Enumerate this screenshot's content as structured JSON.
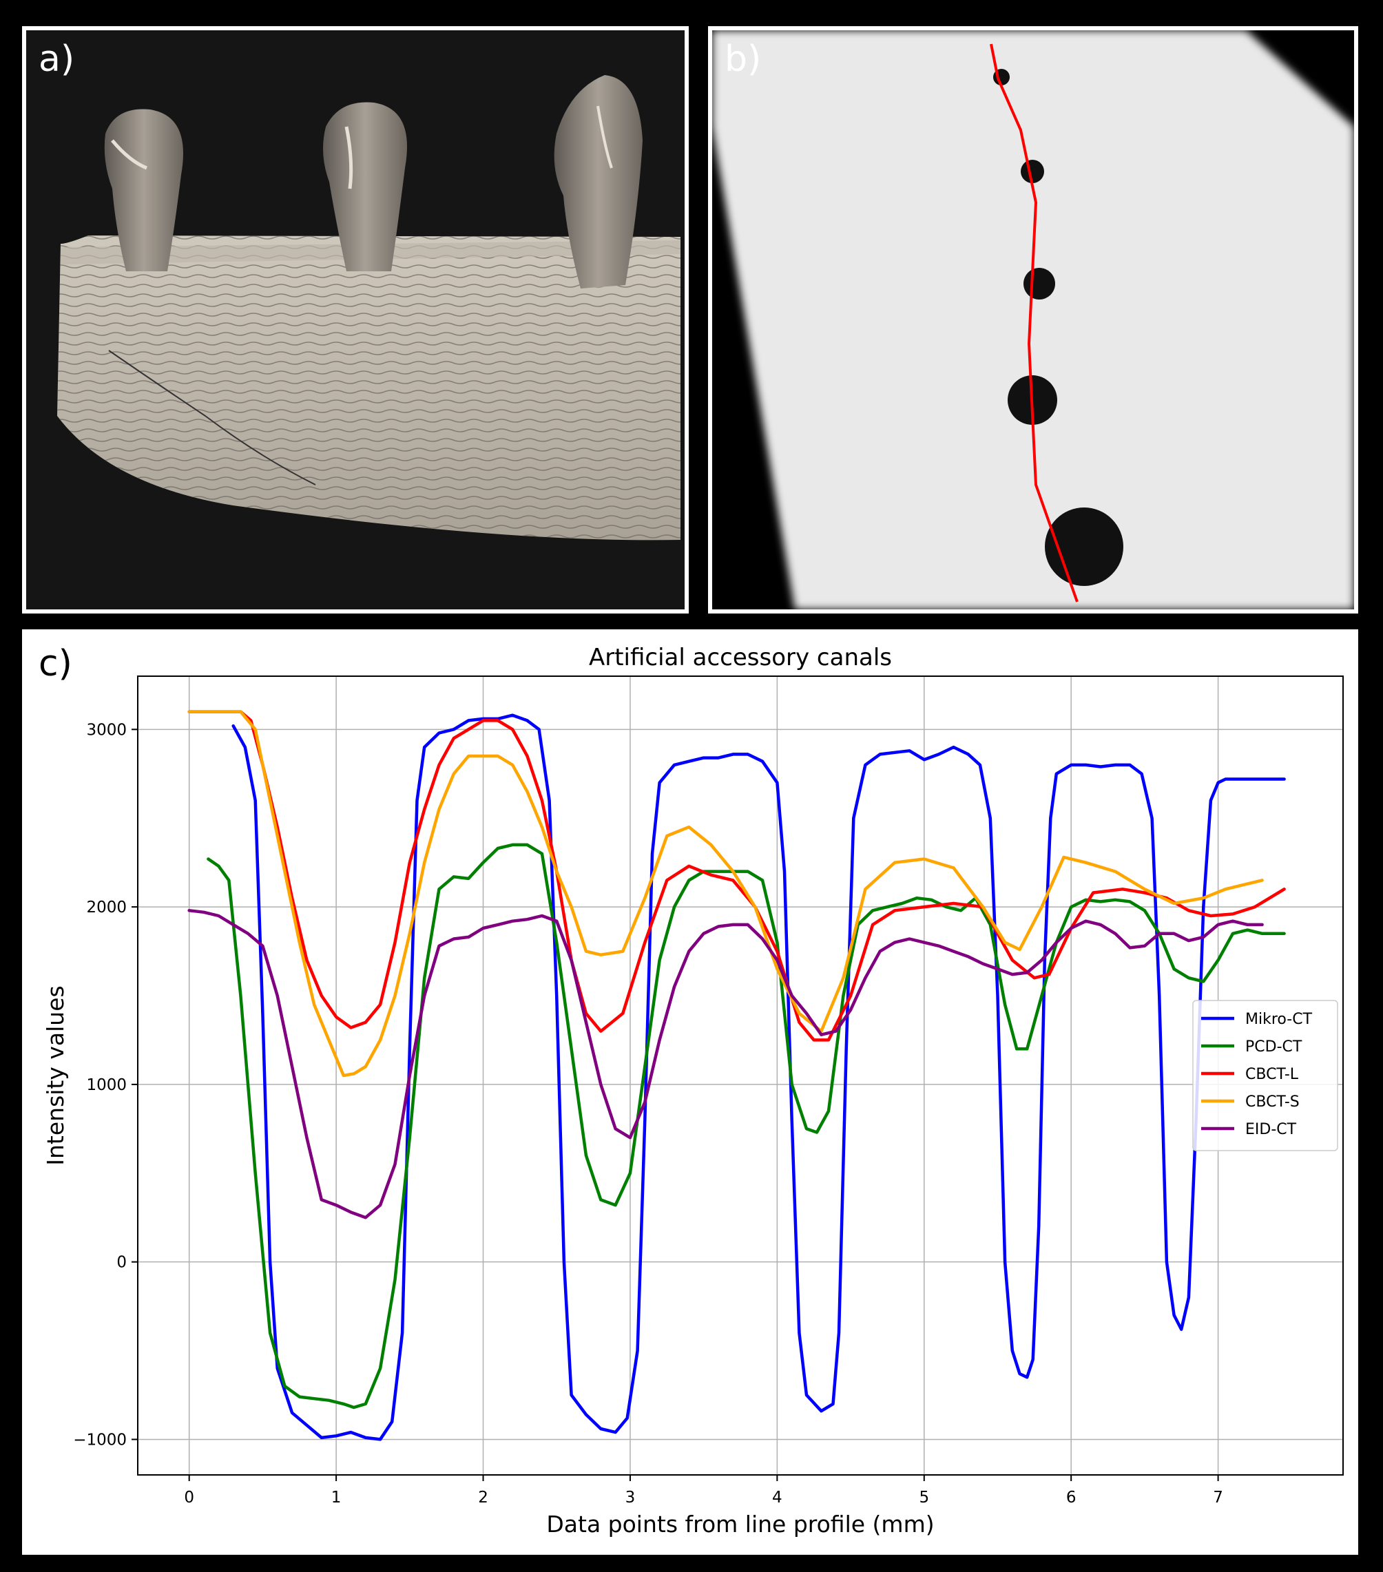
{
  "panels": {
    "a": {
      "label": "a)"
    },
    "b": {
      "label": "b)"
    },
    "c": {
      "label": "c)"
    }
  },
  "colors": {
    "Mikro-CT": "#0000ff",
    "PCD-CT": "#008000",
    "CBCT-L": "#ff0000",
    "CBCT-S": "#ffa500",
    "EID-CT": "#800080",
    "profile_line": "#ff0000"
  },
  "chart_data": {
    "type": "line",
    "title": "Artificial accessory canals",
    "xlabel": "Data points from line profile (mm)",
    "ylabel": "Intensity values",
    "xlim": [
      -0.35,
      7.85
    ],
    "ylim": [
      -1200,
      3300
    ],
    "xticks": [
      0,
      1,
      2,
      3,
      4,
      5,
      6,
      7
    ],
    "yticks": [
      -1000,
      0,
      1000,
      2000,
      3000
    ],
    "grid": true,
    "legend_position": "center-right",
    "series": [
      {
        "name": "Mikro-CT",
        "x": [
          0.3,
          0.38,
          0.45,
          0.5,
          0.55,
          0.6,
          0.7,
          0.8,
          0.9,
          1.0,
          1.1,
          1.2,
          1.3,
          1.38,
          1.45,
          1.5,
          1.55,
          1.6,
          1.7,
          1.8,
          1.9,
          2.0,
          2.1,
          2.2,
          2.3,
          2.38,
          2.45,
          2.5,
          2.55,
          2.6,
          2.7,
          2.8,
          2.9,
          2.98,
          3.05,
          3.1,
          3.15,
          3.2,
          3.3,
          3.4,
          3.5,
          3.6,
          3.7,
          3.8,
          3.9,
          4.0,
          4.05,
          4.1,
          4.15,
          4.2,
          4.3,
          4.38,
          4.42,
          4.47,
          4.52,
          4.6,
          4.7,
          4.8,
          4.9,
          5.0,
          5.1,
          5.2,
          5.3,
          5.38,
          5.45,
          5.5,
          5.55,
          5.6,
          5.65,
          5.7,
          5.74,
          5.78,
          5.82,
          5.86,
          5.9,
          6.0,
          6.1,
          6.2,
          6.3,
          6.4,
          6.48,
          6.55,
          6.6,
          6.65,
          6.7,
          6.75,
          6.8,
          6.85,
          6.9,
          6.95,
          7.0,
          7.05,
          7.1,
          7.2,
          7.3,
          7.45
        ],
        "y": [
          3020,
          2900,
          2600,
          1400,
          0,
          -600,
          -850,
          -920,
          -990,
          -980,
          -960,
          -990,
          -1000,
          -900,
          -400,
          1200,
          2600,
          2900,
          2980,
          3000,
          3050,
          3060,
          3060,
          3080,
          3050,
          3000,
          2600,
          1500,
          0,
          -750,
          -860,
          -940,
          -960,
          -880,
          -500,
          800,
          2300,
          2700,
          2800,
          2820,
          2840,
          2840,
          2860,
          2860,
          2820,
          2700,
          2200,
          800,
          -400,
          -750,
          -840,
          -800,
          -400,
          1200,
          2500,
          2800,
          2860,
          2870,
          2880,
          2830,
          2860,
          2900,
          2860,
          2800,
          2500,
          1500,
          0,
          -500,
          -630,
          -650,
          -550,
          200,
          1700,
          2500,
          2750,
          2800,
          2800,
          2790,
          2800,
          2800,
          2750,
          2500,
          1500,
          0,
          -300,
          -380,
          -200,
          800,
          2000,
          2600,
          2700,
          2720,
          2720,
          2720,
          2720,
          2720
        ]
      },
      {
        "name": "PCD-CT",
        "x": [
          0.13,
          0.2,
          0.27,
          0.35,
          0.45,
          0.55,
          0.65,
          0.75,
          0.85,
          0.95,
          1.05,
          1.12,
          1.2,
          1.3,
          1.4,
          1.5,
          1.6,
          1.7,
          1.8,
          1.9,
          2.0,
          2.1,
          2.2,
          2.3,
          2.4,
          2.5,
          2.6,
          2.7,
          2.8,
          2.9,
          3.0,
          3.1,
          3.2,
          3.3,
          3.4,
          3.5,
          3.6,
          3.7,
          3.8,
          3.9,
          4.0,
          4.1,
          4.2,
          4.27,
          4.35,
          4.45,
          4.55,
          4.65,
          4.75,
          4.85,
          4.95,
          5.05,
          5.15,
          5.25,
          5.35,
          5.45,
          5.55,
          5.63,
          5.7,
          5.8,
          5.9,
          6.0,
          6.1,
          6.2,
          6.3,
          6.4,
          6.5,
          6.6,
          6.7,
          6.8,
          6.9,
          7.0,
          7.1,
          7.2,
          7.3,
          7.45
        ],
        "y": [
          2270,
          2230,
          2150,
          1500,
          500,
          -400,
          -700,
          -760,
          -770,
          -780,
          -800,
          -820,
          -800,
          -600,
          -100,
          700,
          1600,
          2100,
          2170,
          2160,
          2250,
          2330,
          2350,
          2350,
          2300,
          1800,
          1200,
          600,
          350,
          320,
          500,
          1100,
          1700,
          2000,
          2150,
          2200,
          2200,
          2200,
          2200,
          2150,
          1800,
          1000,
          750,
          730,
          850,
          1500,
          1900,
          1980,
          2000,
          2020,
          2050,
          2040,
          2000,
          1980,
          2050,
          1900,
          1450,
          1200,
          1200,
          1500,
          1800,
          2000,
          2040,
          2030,
          2040,
          2030,
          1980,
          1850,
          1650,
          1600,
          1580,
          1700,
          1850,
          1870,
          1850,
          1850
        ]
      },
      {
        "name": "CBCT-L",
        "x": [
          0.0,
          0.1,
          0.2,
          0.35,
          0.42,
          0.5,
          0.6,
          0.7,
          0.8,
          0.9,
          1.0,
          1.1,
          1.2,
          1.3,
          1.4,
          1.5,
          1.6,
          1.7,
          1.8,
          1.9,
          2.0,
          2.1,
          2.2,
          2.3,
          2.4,
          2.5,
          2.6,
          2.7,
          2.8,
          2.95,
          3.1,
          3.25,
          3.4,
          3.55,
          3.7,
          3.85,
          4.0,
          4.15,
          4.25,
          4.35,
          4.5,
          4.65,
          4.8,
          5.0,
          5.2,
          5.4,
          5.6,
          5.75,
          5.85,
          6.0,
          6.15,
          6.35,
          6.5,
          6.65,
          6.8,
          6.95,
          7.1,
          7.25,
          7.45
        ],
        "y": [
          3100,
          3100,
          3100,
          3100,
          3050,
          2800,
          2450,
          2050,
          1700,
          1500,
          1380,
          1320,
          1350,
          1450,
          1800,
          2250,
          2550,
          2800,
          2950,
          3000,
          3050,
          3050,
          3000,
          2850,
          2600,
          2200,
          1700,
          1400,
          1300,
          1400,
          1800,
          2150,
          2230,
          2180,
          2150,
          2000,
          1750,
          1350,
          1250,
          1250,
          1500,
          1900,
          1980,
          2000,
          2020,
          2000,
          1700,
          1600,
          1620,
          1880,
          2080,
          2100,
          2080,
          2050,
          1980,
          1950,
          1960,
          2000,
          2100
        ]
      },
      {
        "name": "CBCT-S",
        "x": [
          0.0,
          0.1,
          0.2,
          0.35,
          0.45,
          0.55,
          0.65,
          0.75,
          0.85,
          0.95,
          1.05,
          1.12,
          1.2,
          1.3,
          1.4,
          1.5,
          1.6,
          1.7,
          1.8,
          1.9,
          2.0,
          2.1,
          2.2,
          2.3,
          2.4,
          2.5,
          2.6,
          2.7,
          2.8,
          2.95,
          3.1,
          3.25,
          3.4,
          3.55,
          3.7,
          3.85,
          4.0,
          4.15,
          4.3,
          4.45,
          4.6,
          4.8,
          5.0,
          5.2,
          5.4,
          5.55,
          5.65,
          5.8,
          5.95,
          6.1,
          6.3,
          6.5,
          6.7,
          6.9,
          7.05,
          7.2,
          7.3
        ],
        "y": [
          3100,
          3100,
          3100,
          3100,
          3000,
          2600,
          2200,
          1800,
          1450,
          1250,
          1050,
          1060,
          1100,
          1250,
          1500,
          1850,
          2250,
          2550,
          2750,
          2850,
          2850,
          2850,
          2800,
          2650,
          2450,
          2200,
          2000,
          1750,
          1730,
          1750,
          2050,
          2400,
          2450,
          2350,
          2200,
          2000,
          1650,
          1400,
          1300,
          1600,
          2100,
          2250,
          2270,
          2220,
          2000,
          1800,
          1760,
          2000,
          2280,
          2250,
          2200,
          2100,
          2020,
          2050,
          2100,
          2130,
          2150
        ]
      },
      {
        "name": "EID-CT",
        "x": [
          0.0,
          0.1,
          0.2,
          0.3,
          0.4,
          0.5,
          0.6,
          0.7,
          0.8,
          0.9,
          1.0,
          1.1,
          1.2,
          1.3,
          1.4,
          1.5,
          1.6,
          1.7,
          1.8,
          1.9,
          2.0,
          2.1,
          2.2,
          2.3,
          2.4,
          2.5,
          2.6,
          2.7,
          2.8,
          2.9,
          3.0,
          3.1,
          3.2,
          3.3,
          3.4,
          3.5,
          3.6,
          3.7,
          3.8,
          3.9,
          4.0,
          4.1,
          4.2,
          4.3,
          4.4,
          4.5,
          4.6,
          4.7,
          4.8,
          4.9,
          5.0,
          5.1,
          5.2,
          5.3,
          5.4,
          5.5,
          5.6,
          5.7,
          5.8,
          5.9,
          6.0,
          6.1,
          6.2,
          6.3,
          6.4,
          6.5,
          6.6,
          6.7,
          6.8,
          6.9,
          7.0,
          7.1,
          7.2,
          7.3
        ],
        "y": [
          1980,
          1970,
          1950,
          1900,
          1850,
          1780,
          1500,
          1100,
          700,
          350,
          320,
          280,
          250,
          320,
          550,
          1050,
          1500,
          1780,
          1820,
          1830,
          1880,
          1900,
          1920,
          1930,
          1950,
          1920,
          1700,
          1350,
          1000,
          750,
          700,
          900,
          1250,
          1550,
          1750,
          1850,
          1890,
          1900,
          1900,
          1820,
          1700,
          1500,
          1400,
          1280,
          1300,
          1420,
          1600,
          1750,
          1800,
          1820,
          1800,
          1780,
          1750,
          1720,
          1680,
          1650,
          1620,
          1630,
          1700,
          1800,
          1880,
          1920,
          1900,
          1850,
          1770,
          1780,
          1850,
          1850,
          1810,
          1830,
          1900,
          1920,
          1900,
          1900
        ]
      }
    ]
  }
}
